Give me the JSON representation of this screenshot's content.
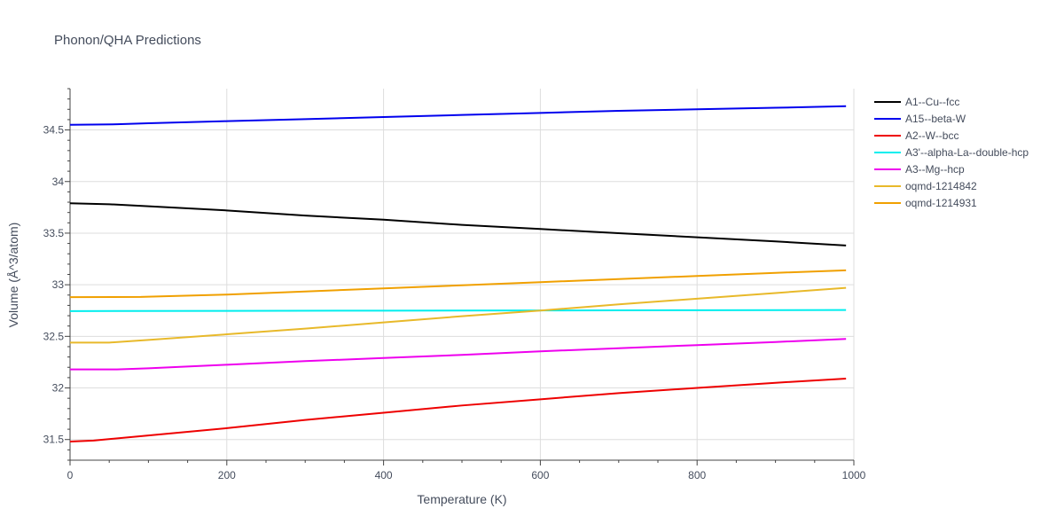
{
  "chart_data": {
    "type": "line",
    "title": "Phonon/QHA Predictions",
    "xlabel": "Temperature (K)",
    "ylabel": "Volume (Å^3/atom)",
    "xlim": [
      0,
      1000
    ],
    "ylim": [
      31.3,
      34.9
    ],
    "x_ticks": [
      0,
      200,
      400,
      600,
      800,
      1000
    ],
    "x_tick_labels": [
      "0",
      "200",
      "400",
      "600",
      "800",
      "1000"
    ],
    "y_ticks": [
      31.5,
      32,
      32.5,
      33,
      33.5,
      34,
      34.5
    ],
    "y_tick_labels": [
      "31.5",
      "32",
      "32.5",
      "33",
      "33.5",
      "34",
      "34.5"
    ],
    "grid": true,
    "legend_position": "right",
    "series": [
      {
        "name": "A1--Cu--fcc",
        "color": "#000000",
        "x": [
          0,
          50,
          100,
          200,
          300,
          400,
          500,
          600,
          700,
          800,
          900,
          990
        ],
        "y": [
          33.79,
          33.78,
          33.76,
          33.72,
          33.67,
          33.63,
          33.58,
          33.54,
          33.5,
          33.46,
          33.42,
          33.38
        ]
      },
      {
        "name": "A15--beta-W",
        "color": "#0000ee",
        "x": [
          0,
          60,
          100,
          200,
          300,
          400,
          500,
          600,
          700,
          800,
          900,
          990
        ],
        "y": [
          34.55,
          34.555,
          34.565,
          34.585,
          34.605,
          34.625,
          34.645,
          34.665,
          34.685,
          34.7,
          34.715,
          34.73
        ]
      },
      {
        "name": "A2--W--bcc",
        "color": "#ee0000",
        "x": [
          0,
          30,
          100,
          200,
          300,
          400,
          500,
          600,
          700,
          800,
          900,
          990
        ],
        "y": [
          31.48,
          31.49,
          31.54,
          31.61,
          31.69,
          31.76,
          31.83,
          31.89,
          31.95,
          32.0,
          32.05,
          32.09
        ]
      },
      {
        "name": "A3'--alpha-La--double-hcp",
        "color": "#00eeee",
        "x": [
          0,
          200,
          400,
          600,
          800,
          990
        ],
        "y": [
          32.745,
          32.747,
          32.749,
          32.751,
          32.753,
          32.755
        ]
      },
      {
        "name": "A3--Mg--hcp",
        "color": "#ee00ee",
        "x": [
          0,
          60,
          100,
          200,
          300,
          400,
          500,
          600,
          700,
          800,
          900,
          990
        ],
        "y": [
          32.18,
          32.18,
          32.19,
          32.225,
          32.26,
          32.29,
          32.32,
          32.355,
          32.385,
          32.415,
          32.445,
          32.475
        ]
      },
      {
        "name": "oqmd-1214842",
        "color": "#e8b92a",
        "x": [
          0,
          50,
          100,
          200,
          300,
          400,
          500,
          600,
          700,
          800,
          900,
          990
        ],
        "y": [
          32.44,
          32.44,
          32.465,
          32.52,
          32.575,
          32.635,
          32.695,
          32.75,
          32.81,
          32.865,
          32.92,
          32.97
        ]
      },
      {
        "name": "oqmd-1214931",
        "color": "#f0a000",
        "x": [
          0,
          90,
          100,
          200,
          300,
          400,
          500,
          600,
          700,
          800,
          900,
          990
        ],
        "y": [
          32.88,
          32.882,
          32.884,
          32.905,
          32.935,
          32.965,
          32.995,
          33.025,
          33.055,
          33.085,
          33.115,
          33.14
        ]
      }
    ]
  }
}
